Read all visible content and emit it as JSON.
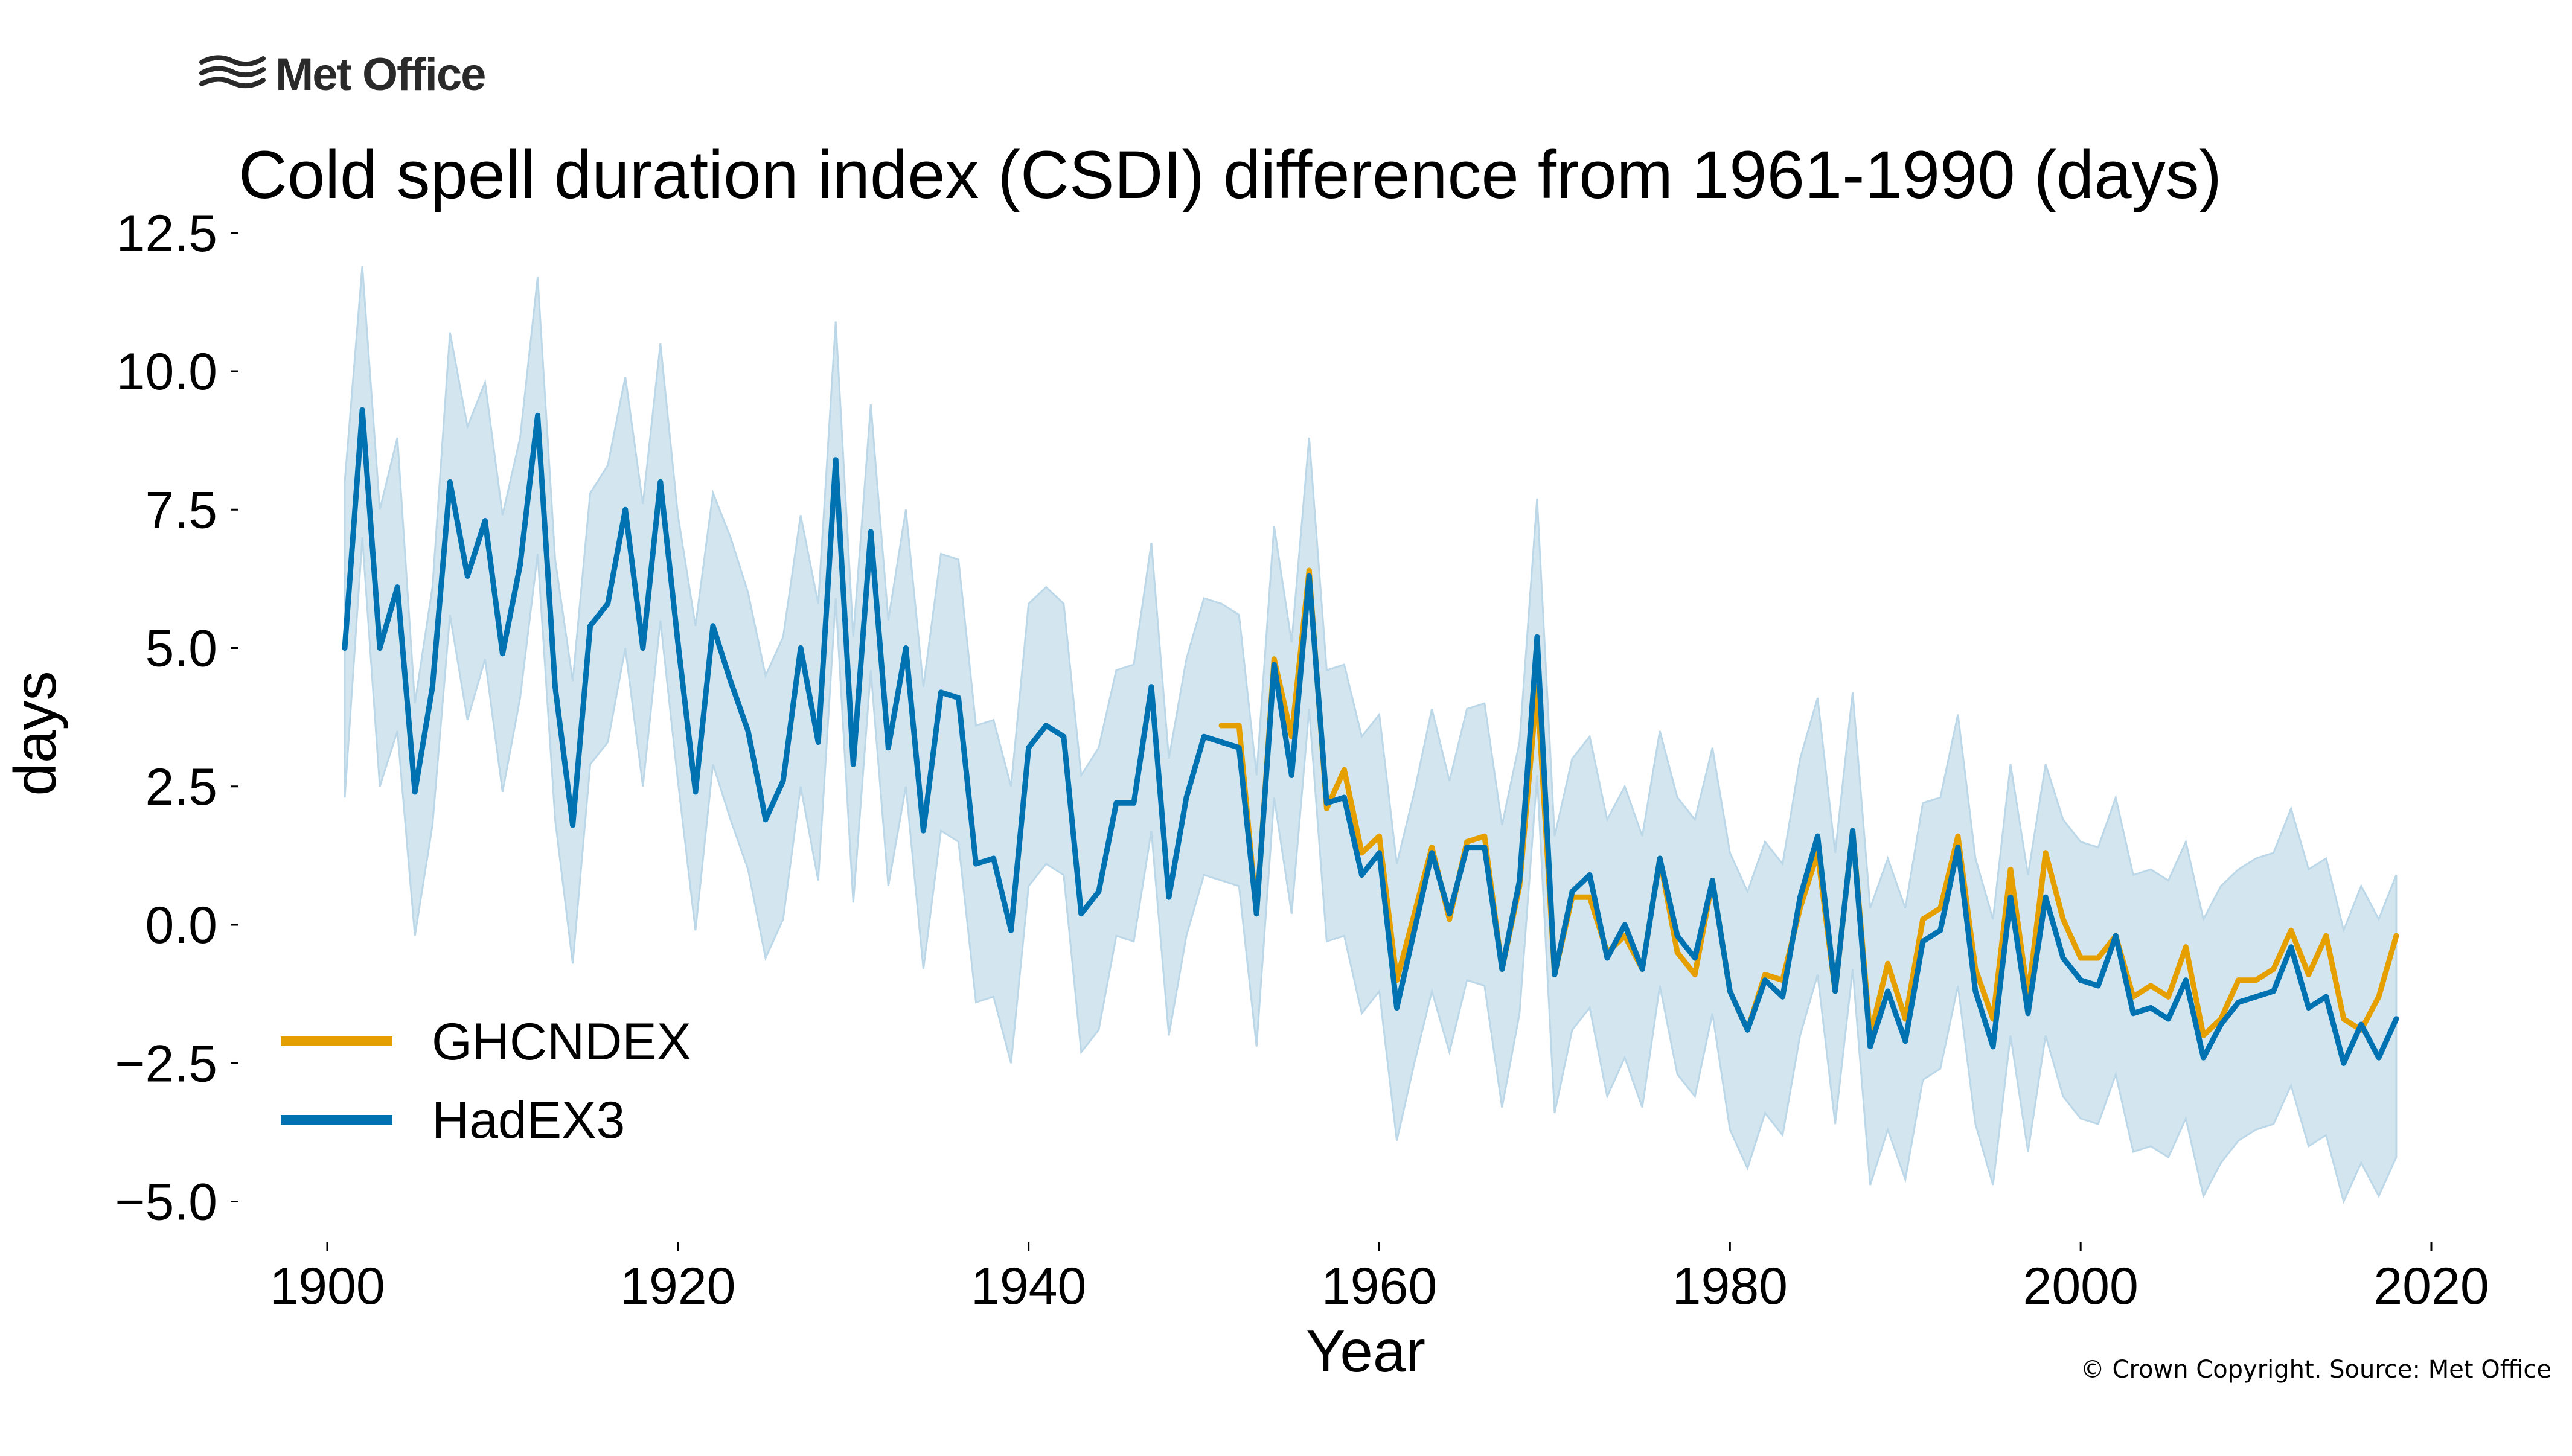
{
  "brand": {
    "name": "Met Office"
  },
  "copyright": "© Crown Copyright. Source: Met Office",
  "chart_data": {
    "type": "line",
    "title": "Cold spell duration index (CSDI) difference from 1961-1990 (days)",
    "xlabel": "Year",
    "ylabel": "days",
    "xlim": [
      1898,
      2021
    ],
    "ylim": [
      -5.7,
      12.6
    ],
    "xticks": [
      1900,
      1920,
      1940,
      1960,
      1980,
      2000,
      2020
    ],
    "xtick_labels": [
      "1900",
      "1920",
      "1940",
      "1960",
      "1980",
      "2000",
      "2020"
    ],
    "yticks": [
      12.5,
      10.0,
      7.5,
      5.0,
      2.5,
      0.0,
      -2.5,
      -5.0
    ],
    "ytick_labels": [
      "12.5",
      "10.0",
      "7.5",
      "5.0",
      "2.5",
      "0.0",
      "−2.5",
      "−5.0"
    ],
    "legend_position": "lower-left",
    "colors": {
      "ghcndex": "#e69f00",
      "hadex3": "#0072b2",
      "band": "#d3e6f0",
      "band_edge": "#bcd8e8"
    },
    "series": [
      {
        "name": "GHCNDEX",
        "color": "#e69f00",
        "x_start": 1951,
        "values": [
          3.6,
          3.6,
          0.2,
          4.8,
          3.4,
          6.4,
          2.1,
          2.8,
          1.3,
          1.6,
          -1.0,
          0.2,
          1.4,
          0.1,
          1.5,
          1.6,
          -0.8,
          0.7,
          4.3,
          -0.9,
          0.5,
          0.5,
          -0.5,
          -0.2,
          -0.8,
          1.2,
          -0.5,
          -0.9,
          0.8,
          -1.2,
          -1.9,
          -0.9,
          -1.0,
          0.3,
          1.3,
          -1.2,
          1.7,
          -2.0,
          -0.7,
          -1.7,
          0.1,
          0.3,
          1.6,
          -0.8,
          -1.7,
          1.0,
          -1.3,
          1.3,
          0.1,
          -0.6,
          -0.6,
          -0.2,
          -1.3,
          -1.1,
          -1.3,
          -0.4,
          -2.0,
          -1.7,
          -1.0,
          -1.0,
          -0.8,
          -0.1,
          -0.9,
          -0.2,
          -1.7,
          -1.9,
          -1.3,
          -0.2
        ]
      },
      {
        "name": "HadEX3",
        "color": "#0072b2",
        "x_start": 1901,
        "values": [
          5.0,
          9.3,
          5.0,
          6.1,
          2.4,
          4.3,
          8.0,
          6.3,
          7.3,
          4.9,
          6.5,
          9.2,
          4.3,
          1.8,
          5.4,
          5.8,
          7.5,
          5.0,
          8.0,
          5.1,
          2.4,
          5.4,
          4.4,
          3.5,
          1.9,
          2.6,
          5.0,
          3.3,
          8.4,
          2.9,
          7.1,
          3.2,
          5.0,
          1.7,
          4.2,
          4.1,
          1.1,
          1.2,
          -0.1,
          3.2,
          3.6,
          3.4,
          0.2,
          0.6,
          2.2,
          2.2,
          4.3,
          0.5,
          2.3,
          3.4,
          3.3,
          3.2,
          0.2,
          4.7,
          2.7,
          6.3,
          2.2,
          2.3,
          0.9,
          1.3,
          -1.5,
          -0.1,
          1.3,
          0.2,
          1.4,
          1.4,
          -0.8,
          0.8,
          5.2,
          -0.9,
          0.6,
          0.9,
          -0.6,
          0.0,
          -0.8,
          1.2,
          -0.2,
          -0.6,
          0.8,
          -1.2,
          -1.9,
          -1.0,
          -1.3,
          0.5,
          1.6,
          -1.2,
          1.7,
          -2.2,
          -1.2,
          -2.1,
          -0.3,
          -0.1,
          1.4,
          -1.2,
          -2.2,
          0.5,
          -1.6,
          0.5,
          -0.6,
          -1.0,
          -1.1,
          -0.2,
          -1.6,
          -1.5,
          -1.7,
          -1.0,
          -2.4,
          -1.8,
          -1.4,
          -1.3,
          -1.2,
          -0.4,
          -1.5,
          -1.3,
          -2.5,
          -1.8,
          -2.4,
          -1.7
        ]
      }
    ],
    "uncertainty_band": {
      "series": "HadEX3",
      "x_start": 1901,
      "upper": [
        8.0,
        11.9,
        7.5,
        8.8,
        4.0,
        6.1,
        10.7,
        9.0,
        9.8,
        7.4,
        8.8,
        11.7,
        6.6,
        4.4,
        7.8,
        8.3,
        9.9,
        7.6,
        10.5,
        7.4,
        5.4,
        7.8,
        7.0,
        6.0,
        4.5,
        5.2,
        7.4,
        5.8,
        10.9,
        5.2,
        9.4,
        5.5,
        7.5,
        4.3,
        6.7,
        6.6,
        3.6,
        3.7,
        2.5,
        5.8,
        6.1,
        5.8,
        2.7,
        3.2,
        4.6,
        4.7,
        6.9,
        3.0,
        4.8,
        5.9,
        5.8,
        5.6,
        2.7,
        7.2,
        5.1,
        8.8,
        4.6,
        4.7,
        3.4,
        3.8,
        1.1,
        2.4,
        3.9,
        2.6,
        3.9,
        4.0,
        1.8,
        3.3,
        7.7,
        1.6,
        3.0,
        3.4,
        1.9,
        2.5,
        1.6,
        3.5,
        2.3,
        1.9,
        3.2,
        1.3,
        0.6,
        1.5,
        1.1,
        3.0,
        4.1,
        1.3,
        4.2,
        0.3,
        1.2,
        0.3,
        2.2,
        2.3,
        3.8,
        1.2,
        0.1,
        2.9,
        0.9,
        2.9,
        1.9,
        1.5,
        1.4,
        2.3,
        0.9,
        1.0,
        0.8,
        1.5,
        0.1,
        0.7,
        1.0,
        1.2,
        1.3,
        2.1,
        1.0,
        1.2,
        -0.1,
        0.7,
        0.1,
        0.9
      ],
      "lower": [
        2.3,
        7.0,
        2.5,
        3.5,
        -0.2,
        1.8,
        5.6,
        3.7,
        4.8,
        2.4,
        4.1,
        6.7,
        1.9,
        -0.7,
        2.9,
        3.3,
        5.0,
        2.5,
        5.5,
        2.6,
        -0.1,
        2.9,
        1.9,
        1.0,
        -0.6,
        0.1,
        2.5,
        0.8,
        5.9,
        0.4,
        4.6,
        0.7,
        2.5,
        -0.8,
        1.7,
        1.5,
        -1.4,
        -1.3,
        -2.5,
        0.7,
        1.1,
        0.9,
        -2.3,
        -1.9,
        -0.2,
        -0.3,
        1.7,
        -2.0,
        -0.2,
        0.9,
        0.8,
        0.7,
        -2.2,
        2.3,
        0.2,
        3.9,
        -0.3,
        -0.2,
        -1.6,
        -1.2,
        -3.9,
        -2.5,
        -1.2,
        -2.3,
        -1.0,
        -1.1,
        -3.3,
        -1.6,
        2.7,
        -3.4,
        -1.9,
        -1.5,
        -3.1,
        -2.4,
        -3.3,
        -1.1,
        -2.7,
        -3.1,
        -1.6,
        -3.7,
        -4.4,
        -3.4,
        -3.8,
        -2.0,
        -0.9,
        -3.6,
        -0.8,
        -4.7,
        -3.7,
        -4.6,
        -2.8,
        -2.6,
        -1.1,
        -3.6,
        -4.7,
        -2.0,
        -4.1,
        -2.0,
        -3.1,
        -3.5,
        -3.6,
        -2.7,
        -4.1,
        -4.0,
        -4.2,
        -3.5,
        -4.9,
        -4.3,
        -3.9,
        -3.7,
        -3.6,
        -2.9,
        -4.0,
        -3.8,
        -5.0,
        -4.3,
        -4.9,
        -4.2
      ]
    }
  }
}
